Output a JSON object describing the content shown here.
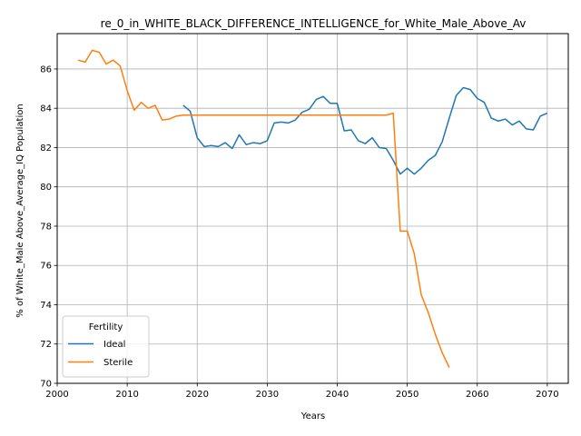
{
  "chart_data": {
    "type": "line",
    "title": "re_0_in_WHITE_BLACK_DIFFERENCE_INTELLIGENCE_for_White_Male_Above_Av",
    "xlabel": "Years",
    "ylabel": "% of White_Male Above_Average_IQ Population",
    "xlim": [
      2000,
      2073
    ],
    "ylim": [
      70,
      87.8
    ],
    "xticks": [
      2000,
      2010,
      2020,
      2030,
      2040,
      2050,
      2060,
      2070
    ],
    "yticks": [
      70,
      72,
      74,
      76,
      78,
      80,
      82,
      84,
      86
    ],
    "grid": true,
    "legend": {
      "title": "Fertility",
      "placement": "lower-left"
    },
    "series": [
      {
        "name": "Ideal",
        "color": "#1f77b4",
        "x": [
          2018,
          2019,
          2020,
          2021,
          2022,
          2023,
          2024,
          2025,
          2026,
          2027,
          2028,
          2029,
          2030,
          2031,
          2032,
          2033,
          2034,
          2035,
          2036,
          2037,
          2038,
          2039,
          2040,
          2041,
          2042,
          2043,
          2044,
          2045,
          2046,
          2047,
          2048,
          2049,
          2050,
          2051,
          2052,
          2053,
          2054,
          2055,
          2056,
          2057,
          2058,
          2059,
          2060,
          2061,
          2062,
          2063,
          2064,
          2065,
          2066,
          2067,
          2068,
          2069,
          2070
        ],
        "values": [
          84.15,
          83.85,
          82.5,
          82.05,
          82.1,
          82.05,
          82.25,
          81.95,
          82.65,
          82.15,
          82.25,
          82.2,
          82.35,
          83.25,
          83.3,
          83.25,
          83.4,
          83.8,
          83.95,
          84.45,
          84.6,
          84.25,
          84.25,
          82.85,
          82.9,
          82.35,
          82.2,
          82.5,
          82.0,
          81.95,
          81.35,
          80.65,
          80.95,
          80.65,
          80.95,
          81.35,
          81.6,
          82.3,
          83.5,
          84.65,
          85.05,
          84.95,
          84.5,
          84.3,
          83.5,
          83.35,
          83.45,
          83.15,
          83.35,
          82.95,
          82.9,
          83.6,
          83.75
        ]
      },
      {
        "name": "Sterile",
        "color": "#ff7f0e",
        "x": [
          2003,
          2004,
          2005,
          2006,
          2007,
          2008,
          2009,
          2010,
          2011,
          2012,
          2013,
          2014,
          2015,
          2016,
          2017,
          2018,
          2019,
          2020,
          2021,
          2022,
          2023,
          2024,
          2025,
          2026,
          2027,
          2028,
          2029,
          2030,
          2031,
          2032,
          2033,
          2034,
          2035,
          2036,
          2037,
          2038,
          2039,
          2040,
          2041,
          2042,
          2043,
          2044,
          2045,
          2046,
          2047,
          2048,
          2049,
          2050,
          2051,
          2052,
          2053,
          2054,
          2055,
          2056
        ],
        "values": [
          86.45,
          86.35,
          86.95,
          86.85,
          86.25,
          86.45,
          86.15,
          84.9,
          83.9,
          84.3,
          84.0,
          84.15,
          83.4,
          83.45,
          83.6,
          83.65,
          83.65,
          83.65,
          83.65,
          83.65,
          83.65,
          83.65,
          83.65,
          83.65,
          83.65,
          83.65,
          83.65,
          83.65,
          83.65,
          83.65,
          83.65,
          83.65,
          83.65,
          83.65,
          83.65,
          83.65,
          83.65,
          83.65,
          83.65,
          83.65,
          83.65,
          83.65,
          83.65,
          83.65,
          83.65,
          83.75,
          77.75,
          77.75,
          76.6,
          74.5,
          73.6,
          72.5,
          71.55,
          70.8
        ]
      }
    ]
  }
}
